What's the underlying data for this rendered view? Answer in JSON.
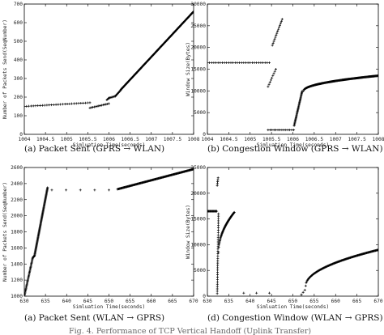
{
  "chart_data": [
    {
      "type": "scatter",
      "caption": "(a) Packet Sent (GPRS → WLAN)",
      "xlabel": "Simluation Time(seconds)",
      "ylabel": "Number of Packets Send(SeqNumber)",
      "xlim": [
        1004,
        1008
      ],
      "ylim": [
        0,
        700
      ],
      "xticks": [
        1004,
        1004.5,
        1005,
        1005.5,
        1006,
        1006.5,
        1007,
        1007.5,
        1008
      ],
      "xtick_labels": [
        "1004",
        "1004.5",
        "1005",
        "1005.5",
        "1006",
        "1006.5",
        "1007",
        "1007.5",
        "1008"
      ],
      "yticks": [
        0,
        100,
        200,
        300,
        400,
        500,
        600,
        700
      ],
      "ytick_labels": [
        "0",
        "100",
        "200",
        "300",
        "400",
        "500",
        "600",
        "700"
      ],
      "series": [
        {
          "segments": [
            {
              "x": [
                1004.0,
                1005.55
              ],
              "y": [
                150,
                170
              ],
              "n": 30
            },
            {
              "x": [
                1005.55,
                1006.0
              ],
              "y": [
                142,
                165
              ],
              "n": 14
            },
            {
              "x": [
                1005.95,
                1006.0
              ],
              "y": [
                185,
                195
              ],
              "n": 4
            },
            {
              "x": [
                1006.0,
                1006.15
              ],
              "y": [
                195,
                205
              ],
              "n": 8
            },
            {
              "x": [
                1006.15,
                1006.28
              ],
              "y": [
                205,
                238
              ],
              "n": 10
            },
            {
              "x": [
                1006.28,
                1008.0
              ],
              "y": [
                240,
                660
              ],
              "n": 190
            }
          ]
        }
      ]
    },
    {
      "type": "scatter",
      "caption": "(b) Congestion Window (GPRS → WLAN)",
      "xlabel": "Simluation Time(seconds)",
      "ylabel": "Window Size(Bytes)",
      "xlim": [
        1004,
        1008
      ],
      "ylim": [
        0,
        30000
      ],
      "xticks": [
        1004,
        1004.5,
        1005,
        1005.5,
        1006,
        1006.5,
        1007,
        1007.5,
        1008
      ],
      "xtick_labels": [
        "1004",
        "1004.5",
        "1005",
        "1005.5",
        "1006",
        "1006.5",
        "1007",
        "1007.5",
        "1008"
      ],
      "yticks": [
        0,
        5000,
        10000,
        15000,
        20000,
        25000,
        30000
      ],
      "ytick_labels": [
        "0",
        "5000",
        "10000",
        "15000",
        "20000",
        "25000",
        "30000"
      ],
      "series": [
        {
          "segments": [
            {
              "x": [
                1004.0,
                1005.45
              ],
              "y": [
                16500,
                16500
              ],
              "n": 30
            },
            {
              "x": [
                1005.42,
                1005.6
              ],
              "y": [
                11000,
                15000
              ],
              "n": 9
            },
            {
              "x": [
                1005.52,
                1005.75
              ],
              "y": [
                20500,
                26500
              ],
              "n": 14
            },
            {
              "x": [
                1005.42,
                1006.02
              ],
              "y": [
                1000,
                1000
              ],
              "n": 14
            },
            {
              "x": [
                1006.03,
                1006.22
              ],
              "y": [
                2000,
                10000
              ],
              "n": 40
            },
            {
              "x": [
                1006.25,
                1008.0
              ],
              "y": [
                10000,
                13500
              ],
              "n": 180,
              "curve": "sqrt"
            }
          ]
        }
      ]
    },
    {
      "type": "scatter",
      "caption": "(a) Packet Sent (WLAN → GPRS)",
      "xlabel": "Simluation Time(seconds)",
      "ylabel": "Number of Packets Send(SeqNumber)",
      "xlim": [
        630,
        670
      ],
      "ylim": [
        1000,
        2600
      ],
      "xticks": [
        630,
        635,
        640,
        645,
        650,
        655,
        660,
        665,
        670
      ],
      "xtick_labels": [
        "630",
        "635",
        "640",
        "645",
        "650",
        "655",
        "660",
        "665",
        "670"
      ],
      "yticks": [
        1000,
        1200,
        1400,
        1600,
        1800,
        2000,
        2200,
        2400,
        2600
      ],
      "ytick_labels": [
        "1000",
        "1200",
        "1400",
        "1600",
        "1800",
        "2000",
        "2200",
        "2400",
        "2600"
      ],
      "series": [
        {
          "segments": [
            {
              "x": [
                630.0,
                632.0
              ],
              "y": [
                1000,
                1480
              ],
              "n": 40
            },
            {
              "x": [
                632.0,
                632.4
              ],
              "y": [
                1480,
                1500
              ],
              "n": 6
            },
            {
              "x": [
                632.4,
                635.5
              ],
              "y": [
                1500,
                2350
              ],
              "n": 90
            },
            {
              "x": [
                636.5,
                650.0
              ],
              "y": [
                2320,
                2320
              ],
              "n": 5
            },
            {
              "x": [
                652.0,
                670.0
              ],
              "y": [
                2330,
                2580
              ],
              "n": 160
            }
          ]
        }
      ]
    },
    {
      "type": "scatter",
      "caption": "(d) Congestion Window (WLAN → GPRS)",
      "xlabel": "Simluation Time(seconds)",
      "ylabel": "Window Size(Bytes)",
      "xlim": [
        630,
        670
      ],
      "ylim": [
        0,
        25000
      ],
      "xticks": [
        630,
        635,
        640,
        645,
        650,
        655,
        660,
        665,
        670
      ],
      "xtick_labels": [
        "630",
        "635",
        "640",
        "645",
        "650",
        "655",
        "660",
        "665",
        "670"
      ],
      "yticks": [
        0,
        5000,
        10000,
        15000,
        20000,
        25000
      ],
      "ytick_labels": [
        "0",
        "5000",
        "10000",
        "15000",
        "20000",
        "25000"
      ],
      "series": [
        {
          "segments": [
            {
              "x": [
                630.0,
                632.2
              ],
              "y": [
                16500,
                16500
              ],
              "n": 20
            },
            {
              "x": [
                632.3,
                632.5
              ],
              "y": [
                21500,
                23000
              ],
              "n": 5
            },
            {
              "x": [
                632.3,
                632.6
              ],
              "y": [
                500,
                16000
              ],
              "n": 35
            },
            {
              "x": [
                632.6,
                636.3
              ],
              "y": [
                8500,
                16300
              ],
              "n": 60,
              "curve": "sqrt"
            },
            {
              "x": [
                638.5,
                644.5
              ],
              "y": [
                600,
                600
              ],
              "n": 3
            },
            {
              "x": [
                652.0,
                652.8
              ],
              "y": [
                300,
                1200
              ],
              "n": 3
            },
            {
              "x": [
                653.0,
                670.0
              ],
              "y": [
                2000,
                9000
              ],
              "n": 140,
              "curve": "sqrt"
            }
          ]
        }
      ]
    }
  ],
  "figure_caption": "Fig. 4.   Performance of TCP Vertical Handoff (Uplink Transfer)"
}
